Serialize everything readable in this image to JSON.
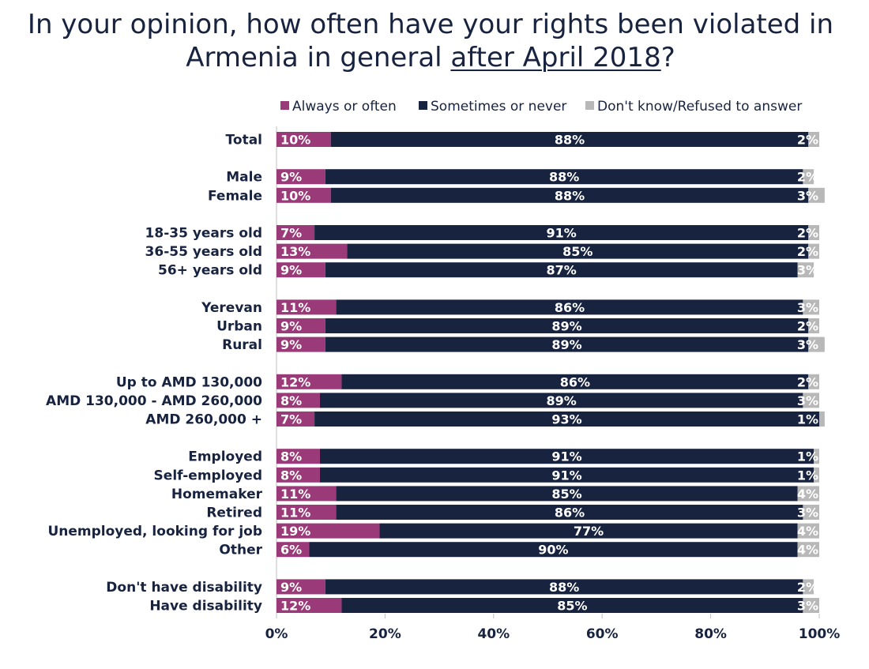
{
  "title_line1": "In your opinion, how often have your rights been violated in",
  "title_line2_plain": "Armenia in general ",
  "title_line2_underlined": "after April 2018",
  "title_line2_end": "?",
  "chart_data": {
    "type": "bar",
    "orientation": "horizontal",
    "stacked": true,
    "xlim": [
      0,
      100
    ],
    "x_ticks": [
      "0%",
      "20%",
      "40%",
      "60%",
      "80%",
      "100%"
    ],
    "legend_position": "top-right",
    "series": [
      {
        "name": "Always or often",
        "color": "#9b3a78"
      },
      {
        "name": "Sometimes or never",
        "color": "#17233f"
      },
      {
        "name": "Don't know/Refused to answer",
        "color": "#b8b8b8"
      }
    ],
    "groups": [
      [
        {
          "label": "Total",
          "values": [
            10,
            88,
            2
          ]
        }
      ],
      [
        {
          "label": "Male",
          "values": [
            9,
            88,
            2
          ]
        },
        {
          "label": "Female",
          "values": [
            10,
            88,
            3
          ]
        }
      ],
      [
        {
          "label": "18-35 years old",
          "values": [
            7,
            91,
            2
          ]
        },
        {
          "label": "36-55 years old",
          "values": [
            13,
            85,
            2
          ]
        },
        {
          "label": "56+ years old",
          "values": [
            9,
            87,
            3
          ]
        }
      ],
      [
        {
          "label": "Yerevan",
          "values": [
            11,
            86,
            3
          ]
        },
        {
          "label": "Urban",
          "values": [
            9,
            89,
            2
          ]
        },
        {
          "label": "Rural",
          "values": [
            9,
            89,
            3
          ]
        }
      ],
      [
        {
          "label": "Up to AMD 130,000",
          "values": [
            12,
            86,
            2
          ]
        },
        {
          "label": "AMD 130,000 - AMD 260,000",
          "values": [
            8,
            89,
            3
          ]
        },
        {
          "label": "AMD 260,000 +",
          "values": [
            7,
            93,
            1
          ]
        }
      ],
      [
        {
          "label": "Employed",
          "values": [
            8,
            91,
            1
          ]
        },
        {
          "label": "Self-employed",
          "values": [
            8,
            91,
            1
          ]
        },
        {
          "label": "Homemaker",
          "values": [
            11,
            85,
            4
          ]
        },
        {
          "label": "Retired",
          "values": [
            11,
            86,
            3
          ]
        },
        {
          "label": "Unemployed, looking for job",
          "values": [
            19,
            77,
            4
          ]
        },
        {
          "label": "Other",
          "values": [
            6,
            90,
            4
          ]
        }
      ],
      [
        {
          "label": "Don't have disability",
          "values": [
            9,
            88,
            2
          ]
        },
        {
          "label": "Have disability",
          "values": [
            12,
            85,
            3
          ]
        }
      ]
    ]
  }
}
